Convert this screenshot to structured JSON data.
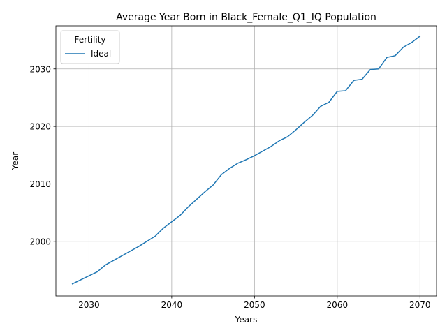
{
  "chart_data": {
    "type": "line",
    "title": "Average Year Born in Black_Female_Q1_IQ Population",
    "xlabel": "Years",
    "ylabel": "Year",
    "xlim": [
      2026,
      2072
    ],
    "ylim": [
      1990.5,
      2037.5
    ],
    "xticks": [
      2030,
      2040,
      2050,
      2060,
      2070
    ],
    "yticks": [
      2000,
      2010,
      2020,
      2030
    ],
    "grid": true,
    "legend": {
      "title": "Fertility",
      "position": "top-left"
    },
    "series": [
      {
        "name": "Ideal",
        "color": "#1f77b4",
        "x": [
          2028,
          2029,
          2030,
          2031,
          2032,
          2033,
          2034,
          2035,
          2036,
          2037,
          2038,
          2039,
          2040,
          2041,
          2042,
          2043,
          2044,
          2045,
          2046,
          2047,
          2048,
          2049,
          2050,
          2051,
          2052,
          2053,
          2054,
          2055,
          2056,
          2057,
          2058,
          2059,
          2060,
          2061,
          2062,
          2063,
          2064,
          2065,
          2066,
          2067,
          2068,
          2069,
          2070
        ],
        "y": [
          1992.6,
          1993.3,
          1994.0,
          1994.7,
          1995.9,
          1996.7,
          1997.5,
          1998.3,
          1999.1,
          2000.0,
          2000.9,
          2002.3,
          2003.4,
          2004.5,
          2006.0,
          2007.3,
          2008.6,
          2009.8,
          2011.6,
          2012.7,
          2013.6,
          2014.2,
          2014.9,
          2015.7,
          2016.5,
          2017.5,
          2018.2,
          2019.4,
          2020.7,
          2021.9,
          2023.5,
          2024.2,
          2026.1,
          2026.2,
          2028.0,
          2028.2,
          2029.9,
          2030.0,
          2032.0,
          2032.3,
          2033.8,
          2034.6,
          2035.7
        ]
      }
    ]
  }
}
